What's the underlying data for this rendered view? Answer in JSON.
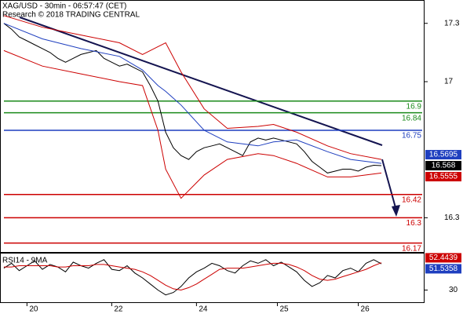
{
  "chart_data": {
    "type": "line",
    "title": "XAG/USD - 30min - 06:57:47 (CET)",
    "subtitle": "Research © 2018 TRADING CENTRAL",
    "xlim": [
      -0.5,
      54.5
    ],
    "xticks": [
      {
        "value": 3,
        "label": "20"
      },
      {
        "value": 14,
        "label": "22"
      },
      {
        "value": 25,
        "label": "24"
      },
      {
        "value": 35.5,
        "label": "25"
      },
      {
        "value": 46,
        "label": "26"
      }
    ],
    "ylim": [
      16.12,
      17.42
    ],
    "yticks": [
      17.3,
      17.0,
      16.3
    ],
    "series": [
      {
        "color": "#000000",
        "x": [
          0,
          1,
          2,
          3,
          4,
          5,
          6,
          7,
          8,
          9,
          10,
          11,
          12,
          13,
          14,
          15,
          16,
          17,
          18,
          19,
          20,
          21,
          22,
          23,
          24,
          25,
          26,
          27,
          28,
          29,
          30,
          31,
          32,
          33,
          34,
          35,
          36,
          37,
          38,
          39,
          40,
          41,
          42,
          43,
          44,
          45,
          46,
          47,
          48,
          49
        ],
        "values": [
          17.3,
          17.27,
          17.23,
          17.21,
          17.19,
          17.17,
          17.15,
          17.12,
          17.1,
          17.12,
          17.14,
          17.15,
          17.16,
          17.12,
          17.1,
          17.08,
          17.09,
          17.07,
          17.05,
          16.98,
          16.9,
          16.74,
          16.66,
          16.62,
          16.6,
          16.64,
          16.66,
          16.67,
          16.68,
          16.66,
          16.64,
          16.62,
          16.69,
          16.71,
          16.7,
          16.71,
          16.7,
          16.69,
          16.68,
          16.64,
          16.59,
          16.56,
          16.53,
          16.54,
          16.55,
          16.55,
          16.54,
          16.56,
          16.57,
          16.568
        ]
      },
      {
        "color": "#cc0000",
        "x": [
          0,
          5,
          10,
          15,
          18,
          20,
          21,
          23,
          26,
          29,
          33,
          35,
          38,
          42,
          45,
          49
        ],
        "values": [
          17.34,
          17.28,
          17.24,
          17.2,
          17.14,
          17.18,
          17.2,
          17.05,
          16.86,
          16.76,
          16.77,
          16.78,
          16.74,
          16.67,
          16.63,
          16.6
        ]
      },
      {
        "color": "#cc0000",
        "x": [
          0,
          5,
          10,
          15,
          18,
          20,
          21,
          23,
          26,
          29,
          33,
          35,
          38,
          42,
          45,
          49
        ],
        "values": [
          17.16,
          17.08,
          17.04,
          17.0,
          16.98,
          16.75,
          16.55,
          16.4,
          16.52,
          16.6,
          16.63,
          16.62,
          16.58,
          16.51,
          16.51,
          16.53
        ]
      },
      {
        "color": "#1f3fbf",
        "x": [
          0,
          5,
          10,
          15,
          18,
          20,
          21,
          23,
          26,
          29,
          33,
          35,
          38,
          42,
          45,
          49
        ],
        "values": [
          17.3,
          17.22,
          17.17,
          17.13,
          17.06,
          16.98,
          16.95,
          16.88,
          16.75,
          16.69,
          16.67,
          16.69,
          16.7,
          16.64,
          16.6,
          16.58
        ]
      }
    ],
    "levels": [
      16.9,
      16.84,
      16.75,
      16.42,
      16.3,
      16.17
    ],
    "level_colors": [
      "#1a8a1a",
      "#1a8a1a",
      "#1f3fbf",
      "#cc0000",
      "#cc0000",
      "#cc0000"
    ],
    "price_labels": [
      16.5695,
      16.568,
      16.5555
    ],
    "price_label_colors": [
      "#1f3fbf",
      "#000000",
      "#cc0000"
    ],
    "rsi": {
      "title": "RSI14 - 9MA",
      "ylim": [
        20,
        60
      ],
      "yticks": [
        30
      ],
      "series": [
        {
          "color": "#000000",
          "values": [
            48,
            52,
            46,
            50,
            54,
            47,
            51,
            49,
            45,
            53,
            50,
            48,
            52,
            55,
            47,
            46,
            50,
            44,
            40,
            35,
            30,
            26,
            28,
            33,
            40,
            45,
            48,
            52,
            50,
            46,
            44,
            50,
            54,
            52,
            55,
            50,
            53,
            49,
            45,
            38,
            33,
            36,
            42,
            40,
            46,
            48,
            45,
            52,
            55,
            51.5358
          ]
        },
        {
          "color": "#cc0000",
          "values": [
            49,
            49,
            50,
            50,
            50,
            50,
            50,
            49,
            49,
            50,
            50,
            50,
            51,
            51,
            50,
            49,
            48,
            47,
            45,
            42,
            38,
            34,
            31,
            30,
            32,
            35,
            39,
            43,
            47,
            48,
            48,
            48,
            49,
            50,
            51,
            52,
            52,
            51,
            49,
            46,
            42,
            39,
            38,
            39,
            41,
            43,
            45,
            47,
            50,
            52.4439
          ]
        }
      ],
      "labels": [
        52.4439,
        51.5358
      ],
      "label_colors": [
        "#cc0000",
        "#1f3fbf"
      ]
    }
  }
}
